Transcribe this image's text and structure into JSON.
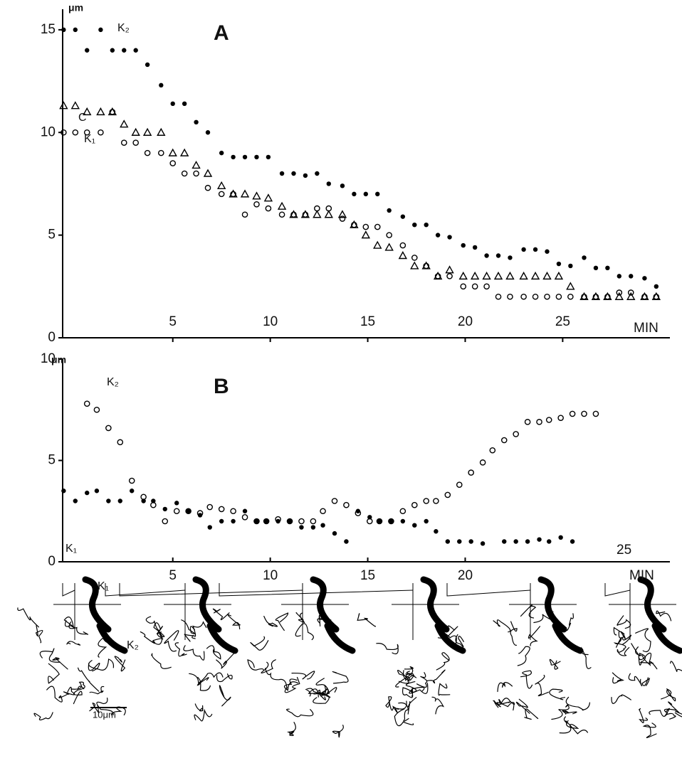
{
  "chart_data": [
    {
      "type": "scatter",
      "title": "A",
      "y_label": "μm",
      "x_label": "MIN",
      "x": [
        -0.6,
        0,
        0.6,
        1.3,
        1.9,
        2.5,
        3.1,
        3.7,
        4.4,
        5,
        5.6,
        6.2,
        6.8,
        7.5,
        8.1,
        8.7,
        9.3,
        9.9,
        10.6,
        11.2,
        11.8,
        12.4,
        13,
        13.7,
        14.3,
        14.9,
        15.5,
        16.1,
        16.8,
        17.4,
        18,
        18.6,
        19.2,
        19.9,
        20.5,
        21.1,
        21.7,
        22.3,
        23,
        23.6,
        24.2,
        24.8,
        25.4,
        26.1,
        26.7,
        27.3,
        27.9,
        28.5,
        29.2,
        29.8
      ],
      "series": [
        {
          "name": "K₂",
          "color": "#000000",
          "marker": "filled-circle",
          "values": [
            15,
            15,
            14,
            15,
            14,
            14,
            14,
            13.3,
            12.3,
            11.4,
            11.4,
            10.5,
            10,
            9,
            8.8,
            8.8,
            8.8,
            8.8,
            8,
            8,
            7.9,
            8,
            7.5,
            7.4,
            7,
            7,
            7,
            6.2,
            5.9,
            5.5,
            5.5,
            5,
            4.9,
            4.5,
            4.4,
            4,
            4,
            3.9,
            4.3,
            4.3,
            4.2,
            3.6,
            3.5,
            3.9,
            3.4,
            3.4,
            3,
            3,
            2.9,
            2.5
          ]
        },
        {
          "name": "C",
          "color": "#000000",
          "marker": "triangle",
          "values": [
            11.3,
            11.3,
            11,
            11,
            11,
            10.4,
            10,
            10,
            10,
            9,
            9,
            8.4,
            8,
            7.4,
            7,
            7,
            6.9,
            6.8,
            6.4,
            6,
            6,
            6,
            6,
            6,
            5.5,
            5,
            4.5,
            4.4,
            4,
            3.5,
            3.5,
            3,
            3.3,
            3,
            3,
            3,
            3,
            3,
            3,
            3,
            3,
            3,
            2.5,
            2,
            2,
            2,
            2,
            2,
            2,
            2
          ]
        },
        {
          "name": "K₁",
          "color": "#000000",
          "marker": "open-circle",
          "values": [
            10,
            10,
            10,
            10,
            11,
            9.5,
            9.5,
            9,
            9,
            8.5,
            8,
            8,
            7.3,
            7,
            7,
            6,
            6.5,
            6.3,
            6,
            6,
            6,
            6.3,
            6.3,
            5.8,
            5.5,
            5.4,
            5.4,
            5,
            4.5,
            3.9,
            3.5,
            3,
            3,
            2.5,
            2.5,
            2.5,
            2,
            2,
            2,
            2,
            2,
            2,
            2,
            2,
            2,
            2,
            2.2,
            2.2,
            2,
            2
          ]
        }
      ],
      "xlim": [
        -0.65,
        30.5
      ],
      "ylim": [
        0,
        16
      ],
      "xticks": [
        5,
        10,
        15,
        20,
        25
      ],
      "yticks": [
        0,
        5,
        10,
        15
      ]
    },
    {
      "type": "scatter",
      "title": "B",
      "y_label": "μm",
      "x_label": "MIN",
      "annotations": [
        "25"
      ],
      "x": [
        -0.6,
        0,
        0.6,
        1.1,
        1.7,
        2.3,
        2.9,
        3.5,
        4,
        4.6,
        5.2,
        5.8,
        6.4,
        6.9,
        7.5,
        8.1,
        8.7,
        9.3,
        9.8,
        10.4,
        11,
        11.6,
        12.2,
        12.7,
        13.3,
        13.9,
        14.5,
        15.1,
        15.6,
        16.2,
        16.8,
        17.4,
        18,
        18.5,
        19.1,
        19.7,
        20.3,
        20.9,
        21.4,
        22,
        22.6,
        23.2,
        23.8,
        24.3,
        24.9,
        25.5,
        26.1,
        26.7
      ],
      "series": [
        {
          "name": "K₂",
          "color": "#000000",
          "marker": "open-circle",
          "values": [
            null,
            null,
            7.8,
            7.5,
            6.6,
            5.9,
            4,
            3.2,
            2.8,
            2,
            2.5,
            2.5,
            2.4,
            2.7,
            2.6,
            2.5,
            2.2,
            2,
            2,
            2.1,
            2,
            2,
            2,
            2.5,
            3,
            2.8,
            2.4,
            2,
            2,
            2,
            2.5,
            2.8,
            3,
            3,
            3.3,
            3.8,
            4.4,
            4.9,
            5.5,
            6,
            6.3,
            6.9,
            6.9,
            7,
            7.1,
            7.3,
            7.3,
            7.3
          ]
        },
        {
          "name": "K₁",
          "color": "#000000",
          "marker": "filled-circle",
          "values": [
            3.5,
            3,
            3.4,
            3.5,
            3,
            3,
            3.5,
            3,
            3,
            2.6,
            2.9,
            2.5,
            2.3,
            1.7,
            2,
            2,
            2.5,
            2,
            2,
            2,
            2,
            1.7,
            1.7,
            1.8,
            1.4,
            1,
            2.5,
            2.2,
            2,
            2,
            2,
            1.8,
            2,
            1.5,
            1,
            1,
            1,
            0.9,
            null,
            1,
            1,
            1,
            1.1,
            1,
            1.2,
            1,
            null,
            null
          ]
        }
      ],
      "xlim": [
        -0.65,
        30.5
      ],
      "ylim": [
        0,
        10
      ],
      "xticks": [
        5,
        10,
        15,
        20
      ],
      "yticks": [
        0,
        5,
        10
      ]
    }
  ],
  "drawings": {
    "labels": [
      "K₁",
      "K₂",
      "10μm"
    ]
  }
}
